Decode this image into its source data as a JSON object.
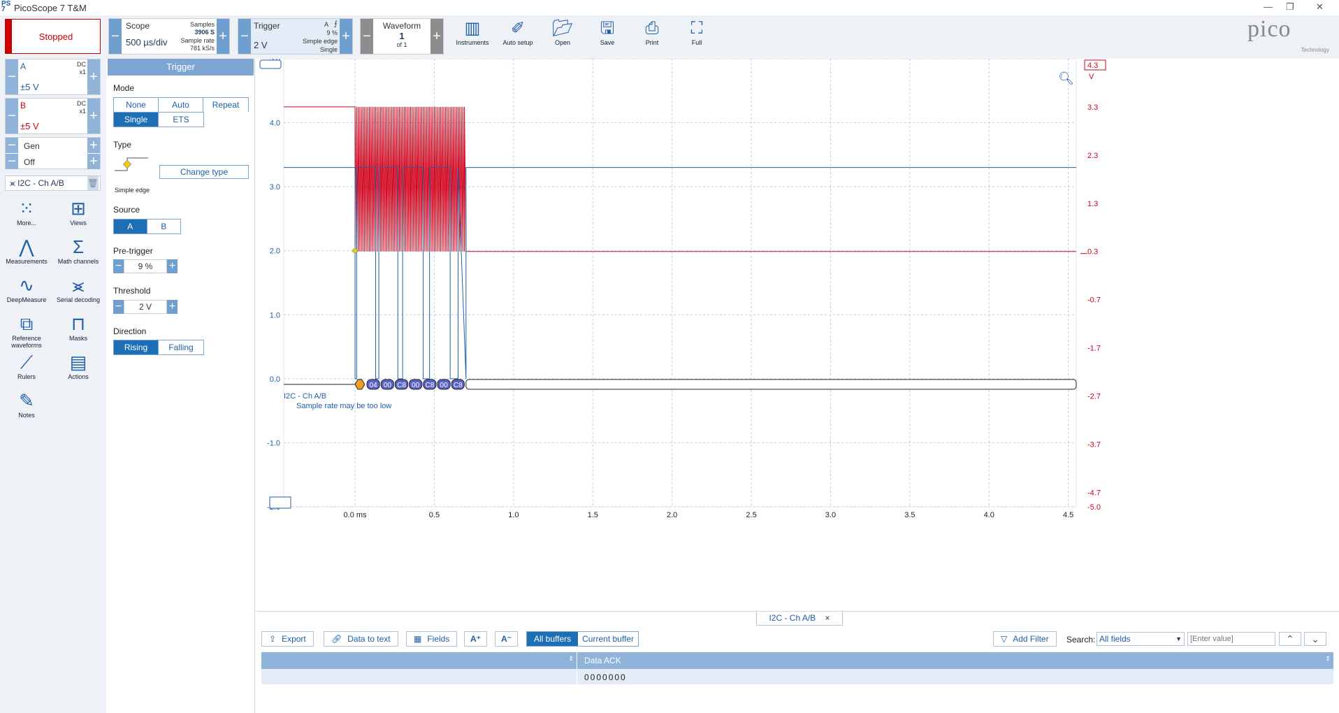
{
  "window": {
    "title": "PicoScope 7 T&M"
  },
  "toolbar": {
    "run_status": "Stopped",
    "scope": {
      "label": "Scope",
      "timebase": "500 µs/div",
      "samples_label": "Samples",
      "samples_value": "3906 S",
      "rate_label": "Sample rate",
      "rate_value": "781 kS/s"
    },
    "trigger": {
      "label": "Trigger",
      "level": "2 V",
      "channel": "A",
      "pretrigger": "9 %",
      "type": "Simple edge",
      "mode": "Single"
    },
    "waveform": {
      "label": "Waveform",
      "number": "1",
      "of": "of 1"
    },
    "buttons": [
      "Instruments",
      "Auto setup",
      "Open",
      "Save",
      "Print",
      "Full"
    ],
    "logo_text": "pico",
    "logo_sub": "Technology"
  },
  "channels": [
    {
      "name": "A",
      "coupling": "DC",
      "probe": "x1",
      "range": "±5 V",
      "color": "#1f5ea8"
    },
    {
      "name": "B",
      "coupling": "DC",
      "probe": "x1",
      "range": "±5 V",
      "color": "#d0021b"
    }
  ],
  "gen": {
    "label": "Gen",
    "state": "Off"
  },
  "decoder_chip": "I2C - Ch A/B",
  "side_tools": [
    {
      "label": "More...",
      "icon": "grid-dots-icon"
    },
    {
      "label": "Views",
      "icon": "views-grid-icon"
    },
    {
      "label": "Measurements",
      "icon": "compass-icon"
    },
    {
      "label": "Math channels",
      "icon": "sigma-icon"
    },
    {
      "label": "DeepMeasure",
      "icon": "wave-icon"
    },
    {
      "label": "Serial decoding",
      "icon": "serial-icon"
    },
    {
      "label": "Reference waveforms",
      "icon": "reference-icon"
    },
    {
      "label": "Masks",
      "icon": "mask-icon"
    },
    {
      "label": "Rulers",
      "icon": "ruler-icon"
    },
    {
      "label": "Actions",
      "icon": "clapper-icon"
    },
    {
      "label": "Notes",
      "icon": "notes-icon"
    }
  ],
  "trigger_panel": {
    "header": "Trigger",
    "mode_label": "Mode",
    "modes": [
      "None",
      "Auto",
      "Repeat",
      "Single",
      "ETS"
    ],
    "active_mode": "Single",
    "type_label": "Type",
    "type_name": "Simple edge",
    "change_type": "Change type",
    "source_label": "Source",
    "sources": [
      "A",
      "B"
    ],
    "active_source": "A",
    "pretrigger_label": "Pre-trigger",
    "pretrigger_value": "9 %",
    "threshold_label": "Threshold",
    "threshold_value": "2 V",
    "direction_label": "Direction",
    "directions": [
      "Rising",
      "Falling"
    ],
    "active_direction": "Rising"
  },
  "chart_data": {
    "type": "line",
    "xlabel": "ms",
    "x_ticks": [
      "0.0 ms",
      "0.5",
      "1.0",
      "1.5",
      "2.0",
      "2.5",
      "3.0",
      "3.5",
      "4.0",
      "4.5"
    ],
    "xlim": [
      -0.45,
      4.55
    ],
    "left_axis": {
      "unit": "V",
      "ticks": [
        "5.0",
        "4.0",
        "3.0",
        "2.0",
        "1.0",
        "0.0",
        "-1.0",
        "-2.0"
      ],
      "lim": [
        -2.0,
        5.0
      ]
    },
    "right_axis": {
      "unit": "V",
      "max_label": "4.3",
      "ticks": [
        "3.3",
        "2.3",
        "1.3",
        "0.3",
        "-0.7",
        "-1.7",
        "-2.7",
        "-3.7",
        "-4.7",
        "-5.0"
      ],
      "lim": [
        -5.0,
        4.3
      ]
    },
    "series": [
      {
        "name": "A",
        "color": "#1f5ea8",
        "idle_level": 3.3,
        "burst": [
          0.0,
          0.7
        ]
      },
      {
        "name": "B",
        "color": "#d0021b",
        "idle_high": 3.3,
        "idle_low": 0.3,
        "burst": [
          0.0,
          0.7
        ]
      }
    ],
    "decode_bytes": [
      "04",
      "00",
      "C8",
      "00",
      "C8",
      "00",
      "C8"
    ],
    "decode_label": "I2C - Ch A/B",
    "decode_warning": "Sample rate may be too low",
    "grid": true
  },
  "decode_tab": {
    "label": "I2C - Ch A/B"
  },
  "decode_toolbar": {
    "export": "Export",
    "data_to_text": "Data to text",
    "fields": "Fields",
    "buffers": [
      "All buffers",
      "Current buffer"
    ],
    "active_buffer": "All buffers",
    "add_filter": "Add Filter",
    "search_label": "Search:",
    "search_field": "All fields",
    "value_placeholder": "[Enter value]"
  },
  "decode_table": {
    "columns": [
      "",
      "Data ACK"
    ],
    "rows": [
      [
        "",
        "0000000"
      ]
    ]
  }
}
